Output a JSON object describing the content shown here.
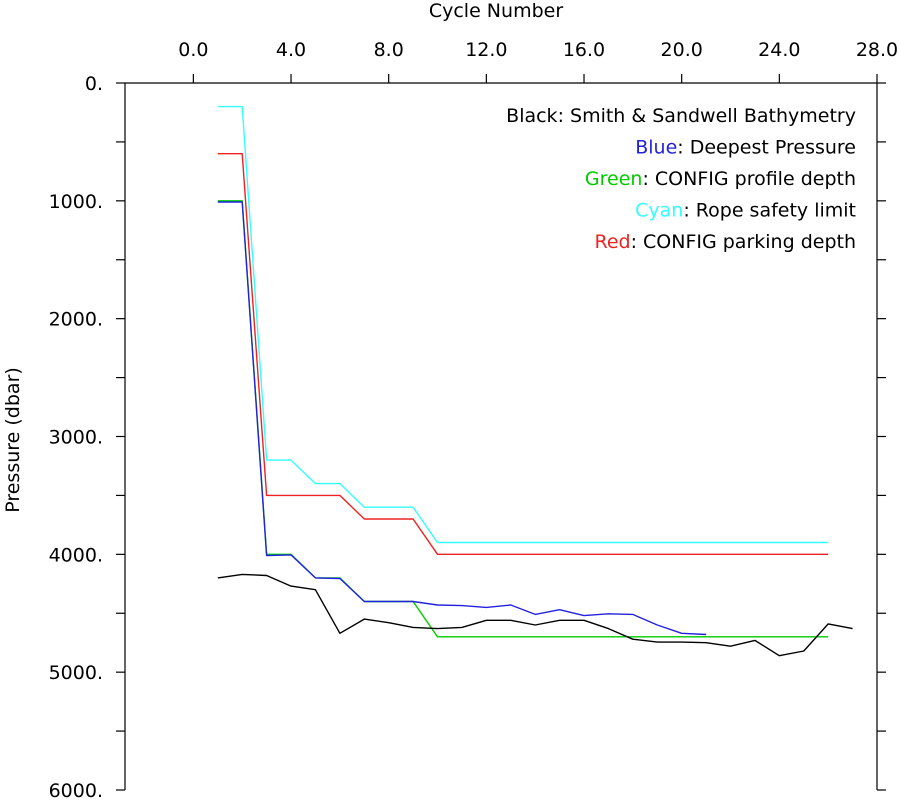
{
  "chart_data": {
    "type": "line",
    "xlabel": "Cycle Number",
    "ylabel": "Pressure (dbar)",
    "xlim": [
      -2.8,
      28.0
    ],
    "ylim": [
      6000,
      0
    ],
    "x_ticks": [
      0,
      4,
      8,
      12,
      16,
      20,
      24,
      28
    ],
    "x_tick_labels": [
      "0.0",
      "4.0",
      "8.0",
      "12.0",
      "16.0",
      "20.0",
      "24.0",
      "28.0"
    ],
    "y_major_ticks": [
      0,
      1000,
      2000,
      3000,
      4000,
      5000,
      6000
    ],
    "y_tick_labels": [
      "0.",
      "1000.",
      "2000.",
      "3000.",
      "4000.",
      "5000.",
      "6000."
    ],
    "y_minor_step": 500,
    "x_axis_position": "top",
    "legend": [
      {
        "key": "Black",
        "text": ": Smith & Sandwell Bathymetry",
        "color": "#000000"
      },
      {
        "key": "Blue",
        "text": ": Deepest Pressure",
        "color": "#2222dd"
      },
      {
        "key": "Green",
        "text": ": CONFIG profile depth",
        "color": "#00cc00"
      },
      {
        "key": "Cyan",
        "text": ": Rope safety limit",
        "color": "#33ffff"
      },
      {
        "key": "Red",
        "text": ": CONFIG parking depth",
        "color": "#ee2222"
      }
    ],
    "legend_position": "top-right",
    "series": [
      {
        "color": "#33ffff",
        "points": [
          [
            1,
            200
          ],
          [
            2,
            200
          ],
          [
            3,
            3200
          ],
          [
            4,
            3200
          ],
          [
            5,
            3400
          ],
          [
            6,
            3400
          ],
          [
            7,
            3600
          ],
          [
            8,
            3600
          ],
          [
            9,
            3600
          ],
          [
            10,
            3900
          ],
          [
            26,
            3900
          ]
        ]
      },
      {
        "color": "#ee2222",
        "points": [
          [
            1,
            600
          ],
          [
            2,
            600
          ],
          [
            3,
            3500
          ],
          [
            4,
            3500
          ],
          [
            5,
            3500
          ],
          [
            6,
            3500
          ],
          [
            7,
            3700
          ],
          [
            8,
            3700
          ],
          [
            9,
            3700
          ],
          [
            10,
            4000
          ],
          [
            26,
            4000
          ]
        ]
      },
      {
        "color": "#00cc00",
        "points": [
          [
            1,
            1000
          ],
          [
            2,
            1000
          ],
          [
            3,
            4000
          ],
          [
            4,
            4000
          ],
          [
            5,
            4200
          ],
          [
            6,
            4200
          ],
          [
            7,
            4400
          ],
          [
            8,
            4400
          ],
          [
            9,
            4400
          ],
          [
            10,
            4700
          ],
          [
            26,
            4700
          ]
        ]
      },
      {
        "color": "#2222dd",
        "points": [
          [
            1,
            1010
          ],
          [
            2,
            1010
          ],
          [
            3,
            4010
          ],
          [
            4,
            4005
          ],
          [
            5,
            4200
          ],
          [
            6,
            4205
          ],
          [
            7,
            4400
          ],
          [
            8,
            4400
          ],
          [
            9,
            4400
          ],
          [
            10,
            4430
          ],
          [
            11,
            4435
          ],
          [
            12,
            4450
          ],
          [
            13,
            4430
          ],
          [
            14,
            4510
          ],
          [
            15,
            4470
          ],
          [
            16,
            4520
          ],
          [
            17,
            4505
          ],
          [
            18,
            4510
          ],
          [
            19,
            4600
          ],
          [
            20,
            4670
          ],
          [
            21,
            4680
          ]
        ]
      },
      {
        "color": "#000000",
        "points": [
          [
            1,
            4200
          ],
          [
            2,
            4170
          ],
          [
            3,
            4180
          ],
          [
            4,
            4270
          ],
          [
            5,
            4300
          ],
          [
            6,
            4670
          ],
          [
            7,
            4550
          ],
          [
            8,
            4580
          ],
          [
            9,
            4620
          ],
          [
            10,
            4630
          ],
          [
            11,
            4620
          ],
          [
            12,
            4560
          ],
          [
            13,
            4560
          ],
          [
            14,
            4600
          ],
          [
            15,
            4560
          ],
          [
            16,
            4560
          ],
          [
            17,
            4630
          ],
          [
            18,
            4720
          ],
          [
            19,
            4745
          ],
          [
            20,
            4745
          ],
          [
            21,
            4750
          ],
          [
            22,
            4780
          ],
          [
            23,
            4730
          ],
          [
            24,
            4860
          ],
          [
            25,
            4820
          ],
          [
            26,
            4590
          ],
          [
            27,
            4630
          ]
        ]
      }
    ]
  }
}
